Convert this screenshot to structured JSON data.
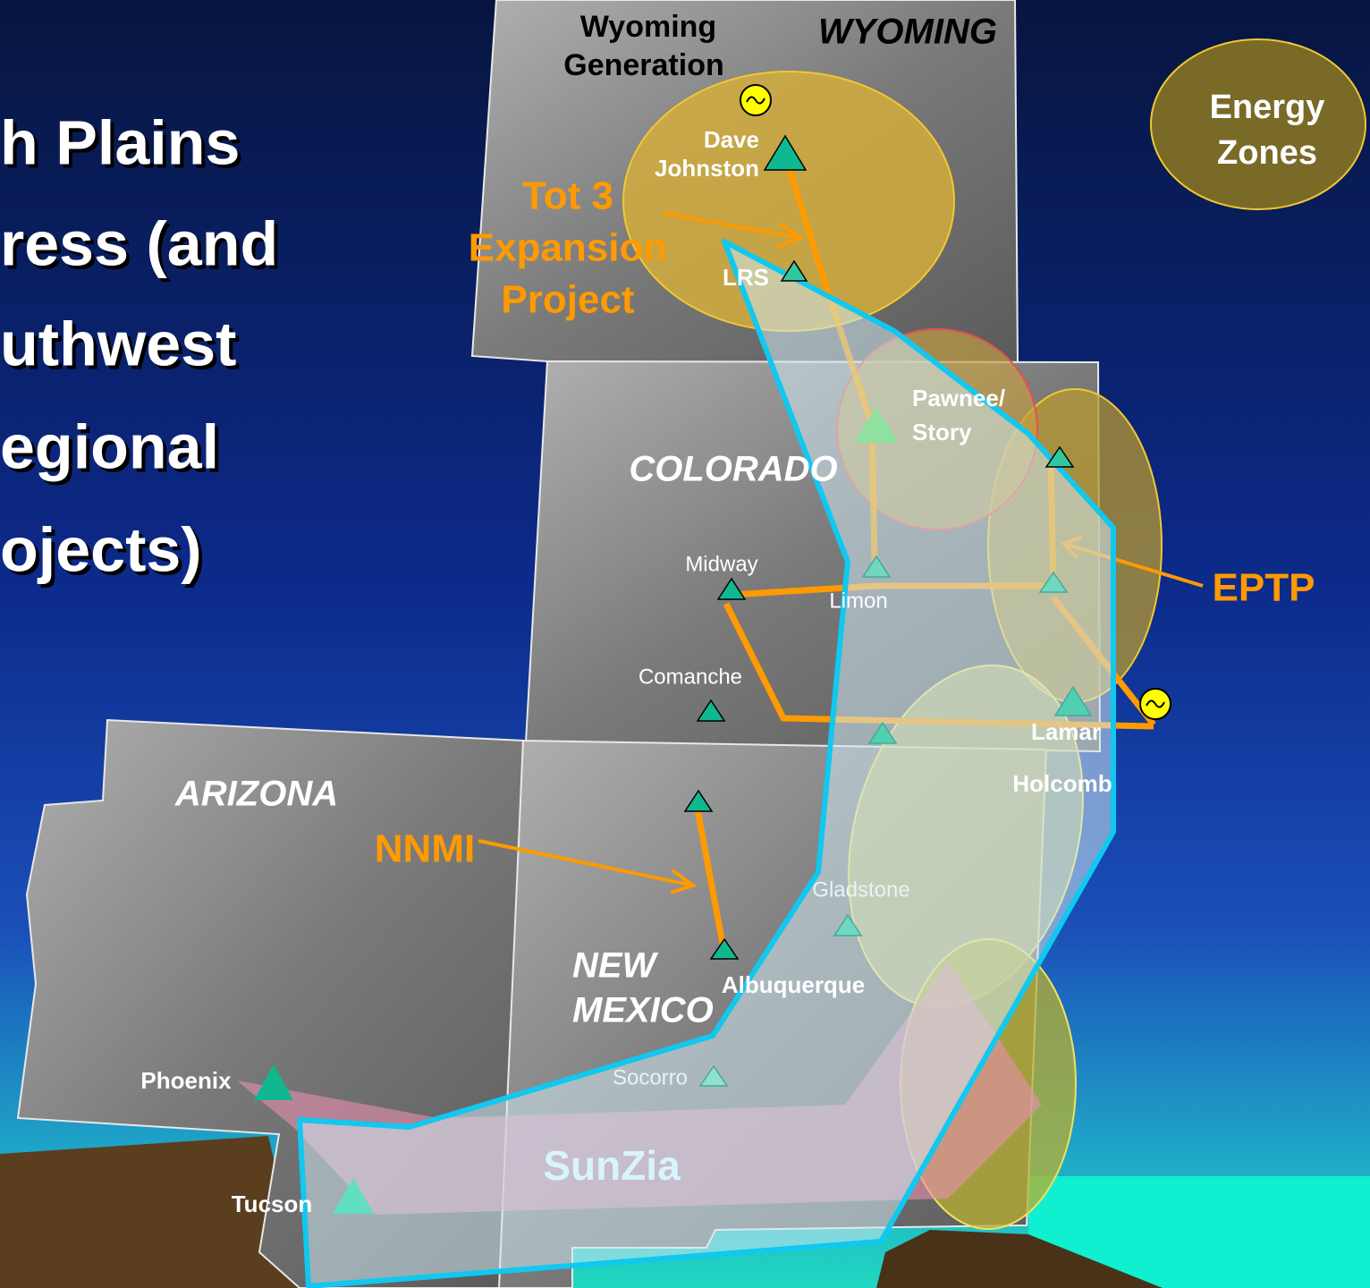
{
  "title_lines": [
    "h Plains",
    "ress (and",
    "uthwest",
    "egional",
    "ojects)"
  ],
  "states": {
    "wyoming": "WYOMING",
    "colorado": "COLORADO",
    "arizona": "ARIZONA",
    "new_mexico": [
      "NEW",
      "MEXICO"
    ]
  },
  "legend": [
    "Energy",
    "Zones"
  ],
  "projects": {
    "tot3": [
      "Tot 3",
      "Expansion",
      "Project"
    ],
    "eptp": "EPTP",
    "nnmi": "NNMI",
    "sunzia": "SunZia"
  },
  "plants": {
    "wyoming_generation": [
      "Wyoming",
      "Generation"
    ],
    "dave_johnston": [
      "Dave",
      "Johnston"
    ],
    "lrs": "LRS",
    "pawnee_story": [
      "Pawnee/",
      "Story"
    ],
    "midway": "Midway",
    "limon": "Limon",
    "comanche": "Comanche",
    "lamar": "Lamar",
    "holcomb": "Holcomb",
    "gladstone": "Gladstone",
    "albuquerque": "Albuquerque",
    "socorro": "Socorro",
    "phoenix": "Phoenix",
    "tucson": "Tucson"
  }
}
